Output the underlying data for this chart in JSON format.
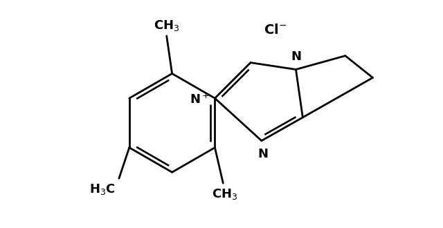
{
  "bg_color": "#ffffff",
  "line_color": "#000000",
  "lw": 2.0,
  "fig_width": 6.4,
  "fig_height": 3.3,
  "dpi": 100
}
